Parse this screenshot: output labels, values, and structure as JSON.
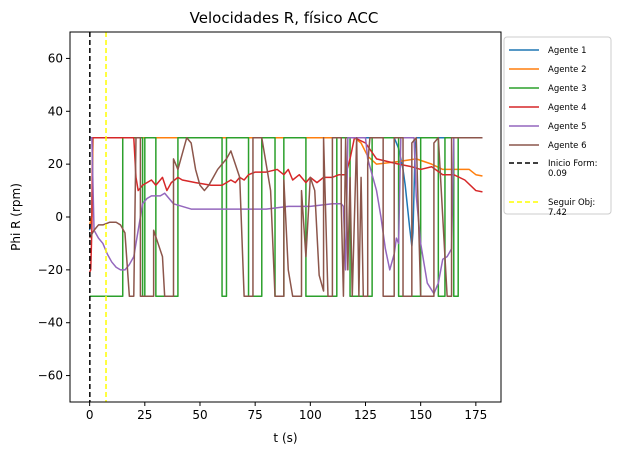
{
  "chart_data": {
    "type": "line",
    "title": "Velocidades R, físico ACC",
    "xlabel": "t (s)",
    "ylabel": "Phi R (rpm)",
    "xlim": [
      -8.9,
      186.4
    ],
    "ylim": [
      -70,
      70
    ],
    "xticks": [
      0,
      25,
      50,
      75,
      100,
      125,
      150,
      175
    ],
    "yticks": [
      -60,
      -40,
      -20,
      0,
      20,
      40,
      60
    ],
    "grid": false,
    "legend_position": "outside-right",
    "series": [
      {
        "name": "Agente 1",
        "color": "#1f77b4",
        "points": [
          [
            0,
            -5
          ],
          [
            1,
            0
          ],
          [
            1.5,
            30
          ],
          [
            138,
            30
          ],
          [
            140,
            26
          ],
          [
            142,
            18
          ],
          [
            143,
            12
          ],
          [
            144,
            4
          ],
          [
            145,
            -4
          ],
          [
            146,
            -11
          ],
          [
            146.5,
            -6
          ],
          [
            147,
            10
          ],
          [
            147.5,
            26
          ],
          [
            148,
            30
          ],
          [
            178,
            30
          ]
        ]
      },
      {
        "name": "Agente 2",
        "color": "#ff7f0e",
        "points": [
          [
            0,
            -3
          ],
          [
            1,
            0
          ],
          [
            1.5,
            30
          ],
          [
            120,
            30
          ],
          [
            123,
            28
          ],
          [
            126,
            23
          ],
          [
            130,
            20
          ],
          [
            140,
            21
          ],
          [
            148,
            22
          ],
          [
            155,
            20
          ],
          [
            160,
            18
          ],
          [
            168,
            18
          ],
          [
            172,
            18
          ],
          [
            175,
            16
          ],
          [
            178,
            15.5
          ]
        ]
      },
      {
        "name": "Agente 3",
        "color": "#2ca02c",
        "points": [
          [
            0,
            -30
          ],
          [
            15,
            -30
          ],
          [
            15,
            30
          ],
          [
            24,
            30
          ],
          [
            24,
            -30
          ],
          [
            25,
            -30
          ],
          [
            25,
            30
          ],
          [
            30,
            30
          ],
          [
            30,
            -30
          ],
          [
            40,
            -30
          ],
          [
            40,
            30
          ],
          [
            60,
            30
          ],
          [
            60,
            -30
          ],
          [
            62,
            -30
          ],
          [
            62,
            30
          ],
          [
            72,
            30
          ],
          [
            72,
            -30
          ],
          [
            78,
            -30
          ],
          [
            78,
            30
          ],
          [
            84,
            30
          ],
          [
            84,
            -30
          ],
          [
            88,
            -30
          ],
          [
            88,
            30
          ],
          [
            98,
            30
          ],
          [
            98,
            -30
          ],
          [
            112,
            -30
          ],
          [
            112,
            30
          ],
          [
            118,
            30
          ],
          [
            118,
            -30
          ],
          [
            128,
            -30
          ],
          [
            128,
            30
          ],
          [
            140,
            30
          ],
          [
            140,
            -30
          ],
          [
            150,
            -30
          ],
          [
            150,
            30
          ],
          [
            158,
            30
          ],
          [
            158,
            -30
          ],
          [
            161,
            -30
          ],
          [
            161,
            30
          ],
          [
            165,
            30
          ],
          [
            165,
            -30
          ],
          [
            167,
            -30
          ],
          [
            167,
            30
          ],
          [
            178,
            30
          ]
        ]
      },
      {
        "name": "Agente 4",
        "color": "#d62728",
        "points": [
          [
            0,
            -21
          ],
          [
            0.5,
            -20
          ],
          [
            1,
            -5
          ],
          [
            1.3,
            30
          ],
          [
            3,
            30
          ],
          [
            7,
            30
          ],
          [
            10,
            30
          ],
          [
            15,
            30
          ],
          [
            20,
            30
          ],
          [
            21,
            15
          ],
          [
            22,
            10
          ],
          [
            24,
            12
          ],
          [
            28,
            14
          ],
          [
            30,
            12
          ],
          [
            33,
            15
          ],
          [
            35,
            10
          ],
          [
            37,
            13
          ],
          [
            40,
            15
          ],
          [
            42,
            14
          ],
          [
            48,
            13
          ],
          [
            55,
            12
          ],
          [
            60,
            12
          ],
          [
            62,
            13
          ],
          [
            64,
            14
          ],
          [
            66,
            13
          ],
          [
            68,
            15
          ],
          [
            70,
            14
          ],
          [
            72,
            16
          ],
          [
            75,
            17
          ],
          [
            80,
            17
          ],
          [
            85,
            18
          ],
          [
            88,
            16
          ],
          [
            90,
            18
          ],
          [
            92,
            14
          ],
          [
            95,
            16
          ],
          [
            98,
            13
          ],
          [
            100,
            15
          ],
          [
            103,
            13
          ],
          [
            106,
            15
          ],
          [
            110,
            15
          ],
          [
            113,
            16
          ],
          [
            116,
            16
          ],
          [
            118,
            22
          ],
          [
            120,
            30
          ],
          [
            125,
            28
          ],
          [
            130,
            22
          ],
          [
            140,
            20
          ],
          [
            146,
            19
          ],
          [
            150,
            18
          ],
          [
            155,
            19
          ],
          [
            160,
            16
          ],
          [
            165,
            16
          ],
          [
            170,
            14
          ],
          [
            175,
            10
          ],
          [
            178,
            9.5
          ]
        ]
      },
      {
        "name": "Agente 5",
        "color": "#9467bd",
        "points": [
          [
            0,
            30
          ],
          [
            1,
            30
          ],
          [
            2,
            -5
          ],
          [
            4,
            -8
          ],
          [
            6,
            -10
          ],
          [
            8,
            -14
          ],
          [
            10,
            -17
          ],
          [
            12,
            -19
          ],
          [
            14,
            -20
          ],
          [
            16,
            -20
          ],
          [
            18,
            -18
          ],
          [
            20,
            -15
          ],
          [
            22,
            -5
          ],
          [
            24,
            5
          ],
          [
            26,
            7
          ],
          [
            28,
            8
          ],
          [
            32,
            8
          ],
          [
            34,
            9
          ],
          [
            36,
            7
          ],
          [
            38,
            5
          ],
          [
            42,
            4
          ],
          [
            46,
            3
          ],
          [
            52,
            3
          ],
          [
            60,
            3
          ],
          [
            70,
            3
          ],
          [
            80,
            3
          ],
          [
            90,
            4
          ],
          [
            100,
            4
          ],
          [
            110,
            5
          ],
          [
            114,
            5
          ],
          [
            115,
            4
          ],
          [
            116,
            -20
          ],
          [
            117,
            30
          ],
          [
            125,
            30
          ],
          [
            126,
            22
          ],
          [
            128,
            16
          ],
          [
            130,
            10
          ],
          [
            132,
            0
          ],
          [
            134,
            -12
          ],
          [
            136,
            -20
          ],
          [
            138,
            -14
          ],
          [
            139,
            -8
          ],
          [
            140,
            -10
          ],
          [
            141,
            30
          ],
          [
            147,
            30
          ],
          [
            148,
            8
          ],
          [
            150,
            -10
          ],
          [
            153,
            -25
          ],
          [
            156,
            -29
          ],
          [
            158,
            -25
          ],
          [
            160,
            -16
          ],
          [
            162,
            -15
          ],
          [
            164,
            -12
          ],
          [
            165,
            30
          ],
          [
            178,
            30
          ]
        ]
      },
      {
        "name": "Agente 6",
        "color": "#8c564b",
        "points": [
          [
            0,
            -8
          ],
          [
            2,
            -5
          ],
          [
            4,
            -3
          ],
          [
            6,
            -3
          ],
          [
            9,
            -2
          ],
          [
            12,
            -2
          ],
          [
            14,
            -3
          ],
          [
            16,
            -6
          ],
          [
            18,
            -30
          ],
          [
            20,
            -30
          ],
          [
            21,
            30
          ],
          [
            23,
            30
          ],
          [
            23,
            -30
          ],
          [
            29,
            -30
          ],
          [
            29,
            -5
          ],
          [
            31,
            -10
          ],
          [
            33,
            -15
          ],
          [
            34,
            -30
          ],
          [
            38,
            -30
          ],
          [
            38,
            22
          ],
          [
            40,
            18
          ],
          [
            44,
            30
          ],
          [
            46,
            28
          ],
          [
            48,
            18
          ],
          [
            50,
            12
          ],
          [
            52,
            10
          ],
          [
            54,
            12
          ],
          [
            56,
            15
          ],
          [
            58,
            18
          ],
          [
            60,
            20
          ],
          [
            62,
            22
          ],
          [
            64,
            25
          ],
          [
            66,
            20
          ],
          [
            68,
            15
          ],
          [
            70,
            -30
          ],
          [
            74,
            -30
          ],
          [
            74,
            30
          ],
          [
            78,
            30
          ],
          [
            80,
            20
          ],
          [
            82,
            10
          ],
          [
            84,
            -30
          ],
          [
            88,
            -30
          ],
          [
            88,
            14
          ],
          [
            90,
            -20
          ],
          [
            92,
            -30
          ],
          [
            96,
            -30
          ],
          [
            96,
            10
          ],
          [
            98,
            -15
          ],
          [
            100,
            15
          ],
          [
            102,
            10
          ],
          [
            104,
            -22
          ],
          [
            106,
            -28
          ],
          [
            106,
            30
          ],
          [
            108,
            -30
          ],
          [
            110,
            -30
          ],
          [
            110,
            30
          ],
          [
            114,
            30
          ],
          [
            114,
            5
          ],
          [
            115,
            -30
          ],
          [
            116,
            30
          ],
          [
            117,
            -20
          ],
          [
            118,
            15
          ],
          [
            119,
            -30
          ],
          [
            121,
            30
          ],
          [
            122,
            -30
          ],
          [
            123,
            15
          ],
          [
            124,
            -30
          ],
          [
            126,
            -30
          ],
          [
            126,
            20
          ],
          [
            127,
            30
          ],
          [
            133,
            30
          ],
          [
            133,
            -30
          ],
          [
            138,
            -30
          ],
          [
            138,
            30
          ],
          [
            142,
            30
          ],
          [
            142,
            -30
          ],
          [
            146,
            -30
          ],
          [
            146,
            28
          ],
          [
            148,
            30
          ],
          [
            150,
            -30
          ],
          [
            156,
            -30
          ],
          [
            156,
            28
          ],
          [
            158,
            30
          ],
          [
            162,
            -30
          ],
          [
            164,
            -30
          ],
          [
            164,
            30
          ],
          [
            178,
            30
          ]
        ]
      }
    ],
    "vlines": [
      {
        "name": "Inicio Form:\n0.09",
        "x": 0.09,
        "color": "#000000",
        "style": "dashed"
      },
      {
        "name": "Seguir Obj:\n7.42",
        "x": 7.42,
        "color": "#ffff00",
        "style": "dashed"
      }
    ]
  }
}
